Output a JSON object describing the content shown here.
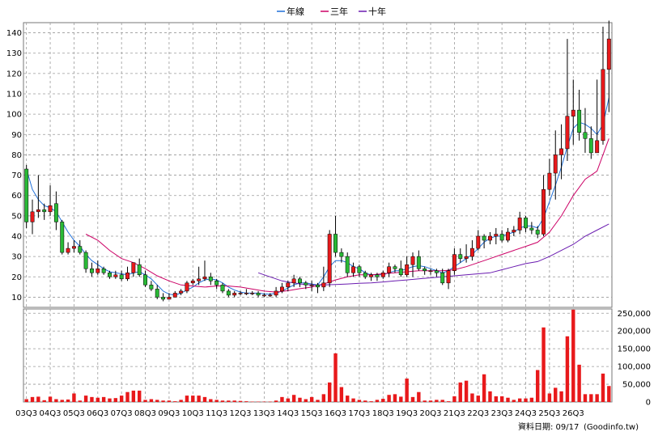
{
  "chart_data": {
    "type": "candlestick+bar",
    "legend": [
      {
        "name": "年線",
        "color": "#1f6fd8"
      },
      {
        "name": "三年",
        "color": "#cc0066"
      },
      {
        "name": "十年",
        "color": "#6a1bb0"
      }
    ],
    "source_note": "資料日期: 09/17",
    "source_site": "(Goodinfo.tw)",
    "colors": {
      "up": "#e8191b",
      "down": "#29b936",
      "wick": "#000000",
      "grid": "#9a9a9a"
    },
    "price_axis": {
      "min": 5,
      "max": 145,
      "ticks": [
        10,
        20,
        30,
        40,
        50,
        60,
        70,
        80,
        90,
        100,
        110,
        120,
        130,
        140
      ]
    },
    "volume_axis": {
      "min": 0,
      "max": 262000,
      "ticks": [
        0,
        50000,
        100000,
        150000,
        200000,
        250000
      ],
      "tick_labels": [
        "0",
        "50,000",
        "100,000",
        "150,000",
        "200,000",
        "250,000"
      ]
    },
    "x_tick_labels": [
      "03Q3",
      "04Q3",
      "05Q3",
      "06Q3",
      "07Q3",
      "08Q3",
      "09Q3",
      "10Q3",
      "11Q3",
      "12Q3",
      "13Q3",
      "14Q3",
      "15Q3",
      "16Q3",
      "17Q3",
      "18Q3",
      "19Q3",
      "20Q3",
      "21Q3",
      "22Q3",
      "23Q3",
      "24Q3",
      "25Q3",
      "26Q3"
    ],
    "candles": [
      [
        73,
        47,
        75,
        44,
        8000
      ],
      [
        47,
        52,
        58,
        41,
        14000
      ],
      [
        52,
        53,
        70,
        49,
        15000
      ],
      [
        53,
        52,
        56,
        48,
        5000
      ],
      [
        52,
        55,
        65,
        50,
        15000
      ],
      [
        56,
        47,
        62,
        43,
        8000
      ],
      [
        47,
        32,
        48,
        31,
        6000
      ],
      [
        32,
        34,
        37,
        31,
        7000
      ],
      [
        34,
        35,
        38,
        32,
        24000
      ],
      [
        35,
        32,
        38,
        31,
        4000
      ],
      [
        32,
        24,
        33,
        22,
        18000
      ],
      [
        24,
        22,
        27,
        20,
        14000
      ],
      [
        22,
        24,
        28,
        21,
        12000
      ],
      [
        24,
        22,
        25,
        21,
        14000
      ],
      [
        22,
        20,
        23,
        19,
        10000
      ],
      [
        20,
        21,
        23,
        19,
        11000
      ],
      [
        21,
        19,
        23,
        18,
        18000
      ],
      [
        19,
        22,
        25,
        18,
        28000
      ],
      [
        22,
        27,
        27,
        20,
        32000
      ],
      [
        26,
        21,
        29,
        20,
        32000
      ],
      [
        21,
        16,
        23,
        15,
        6000
      ],
      [
        16,
        14,
        18,
        13,
        8000
      ],
      [
        14,
        10,
        16,
        9,
        6000
      ],
      [
        10,
        9,
        12,
        8,
        4000
      ],
      [
        9,
        10,
        12,
        9,
        4000
      ],
      [
        10,
        12,
        13,
        10,
        2000
      ],
      [
        12,
        13,
        14,
        11,
        6000
      ],
      [
        13,
        17,
        18,
        12,
        18000
      ],
      [
        17,
        18,
        19,
        16,
        18000
      ],
      [
        18,
        19,
        25,
        16,
        18000
      ],
      [
        19,
        20,
        28,
        18,
        14000
      ],
      [
        20,
        18,
        22,
        16,
        8000
      ],
      [
        18,
        16,
        19,
        14,
        6000
      ],
      [
        16,
        13,
        17,
        12,
        4000
      ],
      [
        13,
        11,
        14,
        10,
        4000
      ],
      [
        11,
        12,
        13,
        10,
        4000
      ],
      [
        12,
        12,
        13,
        11,
        3000
      ],
      [
        12,
        12,
        14,
        11,
        2000
      ],
      [
        12,
        12,
        13,
        11,
        1000
      ],
      [
        12,
        11,
        13,
        10,
        1000
      ],
      [
        11,
        11,
        12,
        10,
        1000
      ],
      [
        11,
        11,
        12,
        10,
        1000
      ],
      [
        11,
        13,
        15,
        10,
        4000
      ],
      [
        13,
        15,
        17,
        12,
        14000
      ],
      [
        15,
        17,
        18,
        13,
        10000
      ],
      [
        17,
        19,
        21,
        15,
        20000
      ],
      [
        19,
        17,
        20,
        15,
        12000
      ],
      [
        17,
        16,
        18,
        14,
        8000
      ],
      [
        16,
        16,
        18,
        13,
        14000
      ],
      [
        16,
        15,
        17,
        12,
        6000
      ],
      [
        15,
        17,
        25,
        13,
        22000
      ],
      [
        17,
        41,
        43,
        15,
        55000
      ],
      [
        41,
        32,
        50,
        30,
        137000
      ],
      [
        32,
        30,
        34,
        27,
        42000
      ],
      [
        30,
        22,
        32,
        20,
        18000
      ],
      [
        22,
        25,
        27,
        20,
        10000
      ],
      [
        25,
        22,
        26,
        20,
        6000
      ],
      [
        22,
        20,
        23,
        19,
        4000
      ],
      [
        20,
        21,
        22,
        18,
        2000
      ],
      [
        21,
        20,
        22,
        18,
        6000
      ],
      [
        20,
        22,
        23,
        19,
        9000
      ],
      [
        22,
        25,
        27,
        20,
        20000
      ],
      [
        25,
        24,
        26,
        22,
        22000
      ],
      [
        24,
        21,
        28,
        20,
        15000
      ],
      [
        21,
        26,
        30,
        20,
        66000
      ],
      [
        26,
        30,
        32,
        20,
        14000
      ],
      [
        30,
        24,
        33,
        23,
        28000
      ],
      [
        24,
        23,
        25,
        21,
        4000
      ],
      [
        23,
        23,
        24,
        21,
        4000
      ],
      [
        23,
        22,
        24,
        20,
        6000
      ],
      [
        22,
        17,
        24,
        16,
        6000
      ],
      [
        17,
        23,
        24,
        14,
        2000
      ],
      [
        23,
        31,
        34,
        21,
        16000
      ],
      [
        31,
        29,
        34,
        27,
        55000
      ],
      [
        29,
        30,
        36,
        27,
        60000
      ],
      [
        30,
        34,
        38,
        28,
        24000
      ],
      [
        34,
        40,
        43,
        33,
        18000
      ],
      [
        40,
        38,
        41,
        34,
        78000
      ],
      [
        38,
        40,
        42,
        36,
        30000
      ],
      [
        40,
        41,
        44,
        36,
        16000
      ],
      [
        41,
        38,
        43,
        37,
        16000
      ],
      [
        38,
        42,
        44,
        37,
        12000
      ],
      [
        42,
        43,
        45,
        40,
        6000
      ],
      [
        43,
        49,
        52,
        41,
        10000
      ],
      [
        49,
        44,
        50,
        42,
        10000
      ],
      [
        44,
        43,
        47,
        41,
        12000
      ],
      [
        43,
        41,
        45,
        39,
        90000
      ],
      [
        41,
        63,
        70,
        40,
        210000
      ],
      [
        63,
        71,
        78,
        60,
        24000
      ],
      [
        71,
        80,
        92,
        58,
        40000
      ],
      [
        80,
        83,
        95,
        68,
        30000
      ],
      [
        83,
        99,
        137,
        77,
        185000
      ],
      [
        99,
        102,
        117,
        85,
        260000
      ],
      [
        102,
        91,
        112,
        87,
        105000
      ],
      [
        91,
        88,
        103,
        81,
        22000
      ],
      [
        88,
        81,
        94,
        78,
        22000
      ],
      [
        81,
        87,
        117,
        81,
        22000
      ],
      [
        87,
        122,
        143,
        85,
        80000
      ],
      [
        122,
        137,
        146,
        101,
        45000
      ]
    ],
    "ma_year": [
      [
        0,
        73
      ],
      [
        1,
        63
      ],
      [
        2,
        58
      ],
      [
        3,
        55
      ],
      [
        4,
        54
      ],
      [
        5,
        52
      ],
      [
        6,
        47
      ],
      [
        7,
        42
      ],
      [
        8,
        38
      ],
      [
        9,
        35
      ],
      [
        10,
        31
      ],
      [
        11,
        28
      ],
      [
        12,
        26
      ],
      [
        13,
        24
      ],
      [
        14,
        22.5
      ],
      [
        15,
        22
      ],
      [
        16,
        21.5
      ],
      [
        17,
        21
      ],
      [
        18,
        22
      ],
      [
        19,
        22.5
      ],
      [
        20,
        21
      ],
      [
        21,
        19
      ],
      [
        22,
        16
      ],
      [
        23,
        13
      ],
      [
        24,
        11.5
      ],
      [
        25,
        11
      ],
      [
        26,
        12
      ],
      [
        27,
        13.5
      ],
      [
        28,
        15
      ],
      [
        29,
        17
      ],
      [
        30,
        18.5
      ],
      [
        31,
        19
      ],
      [
        32,
        18.5
      ],
      [
        33,
        17
      ],
      [
        34,
        15
      ],
      [
        35,
        13.5
      ],
      [
        36,
        12.5
      ],
      [
        37,
        12
      ],
      [
        38,
        12
      ],
      [
        39,
        12
      ],
      [
        40,
        11.6
      ],
      [
        41,
        11.5
      ],
      [
        42,
        12
      ],
      [
        43,
        13
      ],
      [
        44,
        14.5
      ],
      [
        45,
        16
      ],
      [
        46,
        17
      ],
      [
        47,
        17
      ],
      [
        48,
        16.5
      ],
      [
        49,
        16
      ],
      [
        50,
        20
      ],
      [
        51,
        25
      ],
      [
        52,
        28
      ],
      [
        53,
        28
      ],
      [
        54,
        27
      ],
      [
        55,
        25
      ],
      [
        56,
        24
      ],
      [
        57,
        22
      ],
      [
        58,
        21
      ],
      [
        59,
        21
      ],
      [
        60,
        21
      ],
      [
        61,
        22
      ],
      [
        62,
        23
      ],
      [
        63,
        23
      ],
      [
        64,
        24
      ],
      [
        65,
        25
      ],
      [
        66,
        25.5
      ],
      [
        67,
        25
      ],
      [
        68,
        24
      ],
      [
        69,
        23
      ],
      [
        70,
        22
      ],
      [
        71,
        23
      ],
      [
        72,
        25
      ],
      [
        73,
        27
      ],
      [
        74,
        29
      ],
      [
        75,
        31
      ],
      [
        76,
        34
      ],
      [
        77,
        37
      ],
      [
        78,
        39
      ],
      [
        79,
        40
      ],
      [
        80,
        40
      ],
      [
        81,
        41
      ],
      [
        82,
        42
      ],
      [
        83,
        44
      ],
      [
        84,
        45
      ],
      [
        85,
        45
      ],
      [
        86,
        44
      ],
      [
        87,
        49
      ],
      [
        88,
        57
      ],
      [
        89,
        65
      ],
      [
        90,
        74
      ],
      [
        91,
        84
      ],
      [
        92,
        93
      ],
      [
        93,
        96
      ],
      [
        94,
        95
      ],
      [
        95,
        93
      ],
      [
        96,
        90
      ],
      [
        97,
        95
      ],
      [
        98,
        108
      ]
    ],
    "ma_3y": [
      [
        10,
        41
      ],
      [
        12,
        38
      ],
      [
        14,
        33
      ],
      [
        16,
        29
      ],
      [
        18,
        27
      ],
      [
        20,
        24
      ],
      [
        22,
        20.5
      ],
      [
        24,
        18
      ],
      [
        26,
        16
      ],
      [
        28,
        15.5
      ],
      [
        30,
        15
      ],
      [
        32,
        15.5
      ],
      [
        34,
        15.5
      ],
      [
        36,
        15
      ],
      [
        38,
        14
      ],
      [
        40,
        13
      ],
      [
        42,
        12.5
      ],
      [
        44,
        13.2
      ],
      [
        46,
        14.2
      ],
      [
        48,
        15
      ],
      [
        50,
        16.5
      ],
      [
        52,
        18.5
      ],
      [
        54,
        20
      ],
      [
        56,
        21
      ],
      [
        58,
        21
      ],
      [
        60,
        21.5
      ],
      [
        62,
        22
      ],
      [
        64,
        22.5
      ],
      [
        66,
        23
      ],
      [
        68,
        23
      ],
      [
        70,
        23
      ],
      [
        72,
        23.5
      ],
      [
        74,
        25
      ],
      [
        76,
        27
      ],
      [
        78,
        29
      ],
      [
        80,
        31
      ],
      [
        82,
        33
      ],
      [
        84,
        35
      ],
      [
        86,
        37
      ],
      [
        88,
        42
      ],
      [
        90,
        50
      ],
      [
        92,
        60
      ],
      [
        94,
        68
      ],
      [
        96,
        72
      ],
      [
        98,
        88
      ]
    ],
    "ma_10y": [
      [
        39,
        22
      ],
      [
        40,
        21
      ],
      [
        41,
        20
      ],
      [
        42,
        19
      ],
      [
        43,
        18
      ],
      [
        44,
        17.5
      ],
      [
        45,
        17
      ],
      [
        46,
        16.5
      ],
      [
        48,
        16
      ],
      [
        50,
        16
      ],
      [
        52,
        16.2
      ],
      [
        54,
        16.5
      ],
      [
        56,
        16.8
      ],
      [
        58,
        17
      ],
      [
        60,
        17.5
      ],
      [
        62,
        18
      ],
      [
        64,
        18.5
      ],
      [
        66,
        19
      ],
      [
        68,
        19.5
      ],
      [
        70,
        20
      ],
      [
        72,
        20.5
      ],
      [
        74,
        21
      ],
      [
        76,
        21.5
      ],
      [
        78,
        22
      ],
      [
        80,
        23.5
      ],
      [
        82,
        25
      ],
      [
        84,
        26.5
      ],
      [
        86,
        27.5
      ],
      [
        88,
        30
      ],
      [
        90,
        33
      ],
      [
        92,
        36
      ],
      [
        94,
        40
      ],
      [
        96,
        43
      ],
      [
        98,
        46
      ]
    ]
  }
}
